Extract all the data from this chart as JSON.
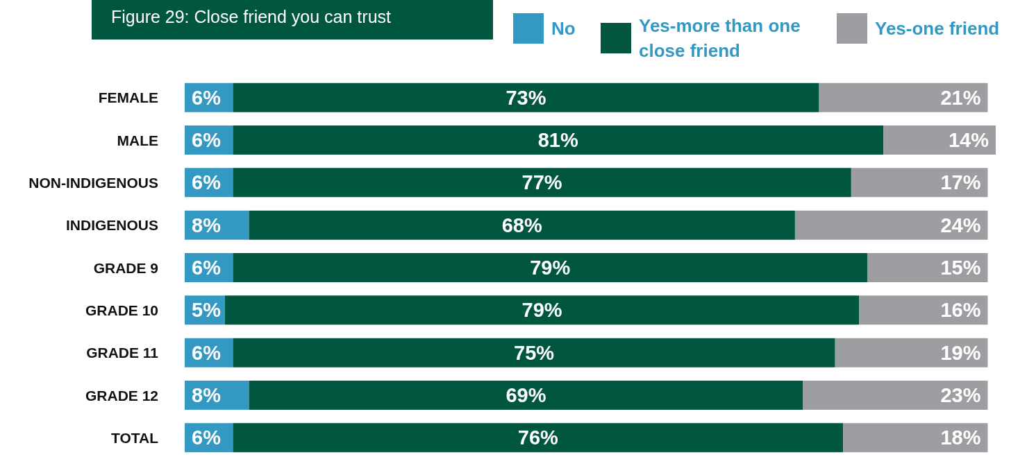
{
  "chart_data": {
    "type": "bar",
    "orientation": "horizontal",
    "stacked": true,
    "legend": "top right",
    "title": "Figure 29: Close friend you can trust",
    "categories": [
      "FEMALE",
      "MALE",
      "NON-INDIGENOUS",
      "INDIGENOUS",
      "GRADE 9",
      "GRADE 10",
      "GRADE 11",
      "GRADE 12",
      "TOTAL"
    ],
    "series": [
      {
        "name": "No",
        "color": "#3399c2",
        "values": [
          6,
          6,
          6,
          8,
          6,
          5,
          6,
          8,
          6
        ],
        "value_labels": [
          "6%",
          "6%",
          "6%",
          "8%",
          "6%",
          "5%",
          "6%",
          "8%",
          "6%"
        ]
      },
      {
        "name": "Yes-more than one close friend",
        "color": "#00563f",
        "values": [
          73,
          81,
          77,
          68,
          79,
          79,
          75,
          69,
          76
        ],
        "value_labels": [
          "73%",
          "81%",
          "77%",
          "68%",
          "79%",
          "79%",
          "75%",
          "69%",
          "76%"
        ]
      },
      {
        "name": "Yes-one friend",
        "color": "#9d9ea1",
        "values": [
          21,
          14,
          17,
          24,
          15,
          16,
          19,
          23,
          18
        ],
        "value_labels": [
          "21%",
          "14%",
          "17%",
          "24%",
          "15%",
          "16%",
          "19%",
          "23%",
          "18%"
        ]
      }
    ]
  }
}
